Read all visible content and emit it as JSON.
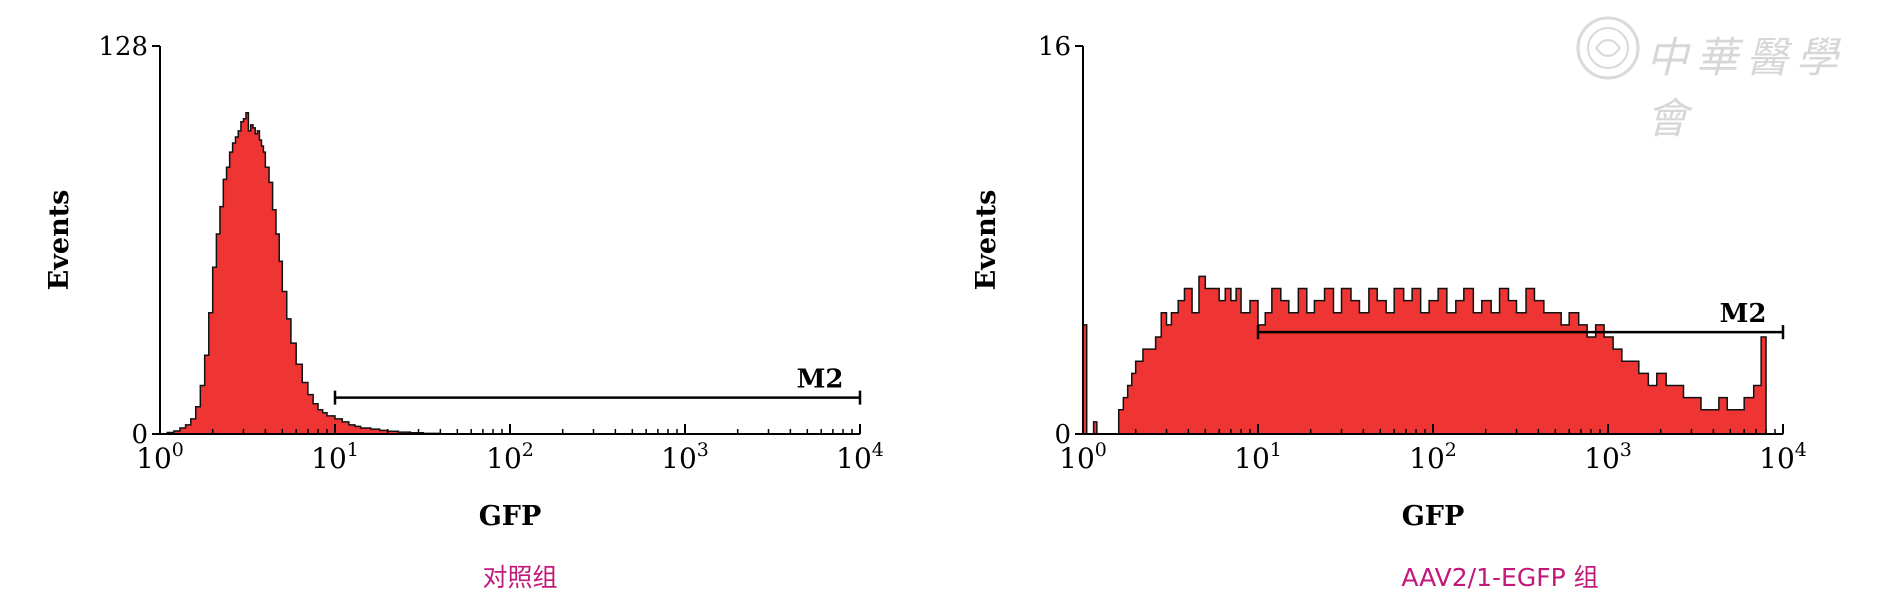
{
  "watermark": {
    "text": "中華醫學會"
  },
  "captions": {
    "left": "对照组",
    "right": "AAV2/1-EGFP 组"
  },
  "colors": {
    "fill": "#ee3534",
    "outline": "#111111",
    "caption": "#c2187a"
  },
  "chart_data": [
    {
      "type": "area",
      "x_scale": "log",
      "xlim": [
        1,
        10000
      ],
      "ylim": [
        0,
        128
      ],
      "xlabel": "GFP",
      "ylabel": "Events",
      "y_tick_labels": [
        "0",
        "128"
      ],
      "x_ticks": [
        {
          "value": 1,
          "base": "10",
          "exp": "0"
        },
        {
          "value": 10,
          "base": "10",
          "exp": "1"
        },
        {
          "value": 100,
          "base": "10",
          "exp": "2"
        },
        {
          "value": 1000,
          "base": "10",
          "exp": "3"
        },
        {
          "value": 10000,
          "base": "10",
          "exp": "4"
        }
      ],
      "gate": {
        "label": "M2",
        "start": 10,
        "end": 10000,
        "level": 12
      },
      "series": [
        {
          "x": [
            1.0,
            1.1,
            1.2,
            1.3,
            1.4,
            1.5,
            1.6,
            1.7,
            1.8,
            1.9,
            2.0,
            2.1,
            2.2,
            2.3,
            2.4,
            2.5,
            2.6,
            2.7,
            2.8,
            2.9,
            3.0,
            3.1,
            3.2,
            3.3,
            3.4,
            3.5,
            3.6,
            3.7,
            3.8,
            3.9,
            4.0,
            4.2,
            4.4,
            4.6,
            4.8,
            5.0,
            5.3,
            5.6,
            6.0,
            6.5,
            7.0,
            7.5,
            8.0,
            8.5,
            9.0,
            10.0,
            11.0,
            12.0,
            13.0,
            14.0,
            16.0,
            18.0,
            20.0,
            23.0,
            27.0,
            32.0,
            40.0
          ],
          "y": [
            0,
            0.5,
            1,
            2,
            3,
            5,
            9,
            16,
            26,
            40,
            55,
            66,
            75,
            84,
            88,
            93,
            96,
            98,
            100,
            103,
            104,
            106,
            100,
            102,
            101,
            99,
            100,
            97,
            95,
            93,
            88,
            83,
            74,
            66,
            57,
            47,
            38,
            30,
            23,
            17,
            13,
            10,
            8,
            7,
            6,
            5,
            4,
            3,
            2.5,
            2,
            1.6,
            1.2,
            0.9,
            0.6,
            0.4,
            0.2,
            0
          ]
        }
      ]
    },
    {
      "type": "area",
      "x_scale": "log",
      "xlim": [
        1,
        10000
      ],
      "ylim": [
        0,
        16
      ],
      "xlabel": "GFP",
      "ylabel": "Events",
      "y_tick_labels": [
        "0",
        "16"
      ],
      "x_ticks": [
        {
          "value": 1,
          "base": "10",
          "exp": "0"
        },
        {
          "value": 10,
          "base": "10",
          "exp": "1"
        },
        {
          "value": 100,
          "base": "10",
          "exp": "2"
        },
        {
          "value": 1000,
          "base": "10",
          "exp": "3"
        },
        {
          "value": 10000,
          "base": "10",
          "exp": "4"
        }
      ],
      "gate": {
        "label": "M2",
        "start": 10,
        "end": 10000,
        "level": 4.2
      },
      "series": [
        {
          "x": [
            1.0,
            1.05,
            1.1,
            1.15,
            1.2,
            1.3,
            1.4,
            1.5,
            1.6,
            1.7,
            1.8,
            1.9,
            2.0,
            2.2,
            2.4,
            2.6,
            2.8,
            3.0,
            3.2,
            3.5,
            3.8,
            4.2,
            4.6,
            5.0,
            5.5,
            6.0,
            6.5,
            7.0,
            7.5,
            8.0,
            9.0,
            10.0,
            11.0,
            12.0,
            13.5,
            15.0,
            17.0,
            19.0,
            21.0,
            24.0,
            27.0,
            30.0,
            34.0,
            38.0,
            43.0,
            48.0,
            54.0,
            60.0,
            68.0,
            76.0,
            85.0,
            95.0,
            107.0,
            120.0,
            135.0,
            150.0,
            170.0,
            190.0,
            215.0,
            240.0,
            270.0,
            300.0,
            340.0,
            380.0,
            430.0,
            480.0,
            540.0,
            600.0,
            680.0,
            760.0,
            850.0,
            950.0,
            1070.0,
            1200.0,
            1350.0,
            1500.0,
            1700.0,
            1900.0,
            2150.0,
            2400.0,
            2700.0,
            3000.0,
            3400.0,
            3800.0,
            4300.0,
            4800.0,
            5400.0,
            6000.0,
            6800.0,
            7500.0,
            8000.0
          ],
          "y": [
            4.5,
            0,
            0,
            0.5,
            0,
            0,
            0,
            0,
            1,
            1.5,
            2,
            2.5,
            3,
            3.5,
            3.5,
            4,
            5,
            4.5,
            5,
            5.5,
            6,
            5,
            6.5,
            6,
            6,
            5.5,
            6,
            5.5,
            6,
            5,
            5.5,
            4.5,
            5,
            6,
            5.5,
            5,
            6,
            5,
            5.5,
            6,
            5,
            6,
            5.5,
            5,
            6,
            5.5,
            5,
            6,
            5.5,
            6,
            5,
            5.5,
            6,
            5,
            5.5,
            6,
            5,
            5.5,
            5,
            6,
            5.5,
            5,
            6,
            5.5,
            5,
            5,
            4.5,
            5,
            4.5,
            4,
            4.5,
            4,
            3.5,
            3,
            3,
            2.5,
            2,
            2.5,
            2,
            2,
            1.5,
            1.5,
            1,
            1,
            1.5,
            1,
            1,
            1.5,
            2,
            4,
            0
          ]
        }
      ]
    }
  ]
}
